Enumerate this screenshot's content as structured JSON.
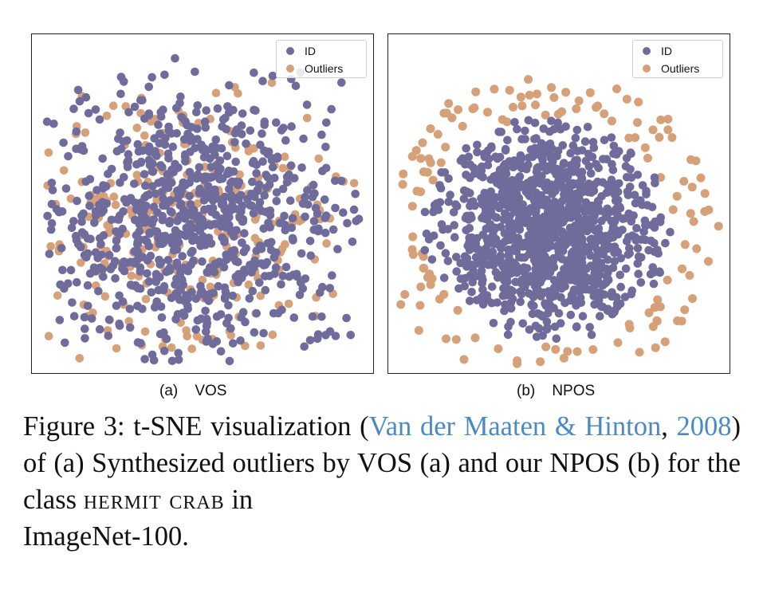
{
  "colors": {
    "id": "#6f6c9c",
    "outliers": "#d6a079",
    "link": "#4a8ac4"
  },
  "panels": [
    {
      "key": "a",
      "label": "(a)    VOS",
      "legend": [
        "ID",
        "Outliers"
      ],
      "chart_data": {
        "type": "scatter",
        "distribution": "mixed",
        "series": [
          {
            "name": "ID",
            "color": "#6f6c9c"
          },
          {
            "name": "Outliers",
            "color": "#d6a079"
          }
        ]
      }
    },
    {
      "key": "b",
      "label": "(b)    NPOS",
      "legend": [
        "ID",
        "Outliers"
      ],
      "chart_data": {
        "type": "scatter",
        "distribution": "ring",
        "series": [
          {
            "name": "ID",
            "color": "#6f6c9c"
          },
          {
            "name": "Outliers",
            "color": "#d6a079"
          }
        ]
      }
    }
  ],
  "caption": {
    "prefix": "Figure 3:  t-SNE visualization (",
    "cite_authors": "Van der Maaten &",
    "cite_authors_2": "Hinton",
    "cite_comma": ", ",
    "cite_year": "2008",
    "mid": ") of (a) Synthesized outliers by VOS (a) and our NPOS (b) for the class ",
    "class_name": "hermit crab",
    "suffix": " in",
    "last_line": "ImageNet-100."
  }
}
